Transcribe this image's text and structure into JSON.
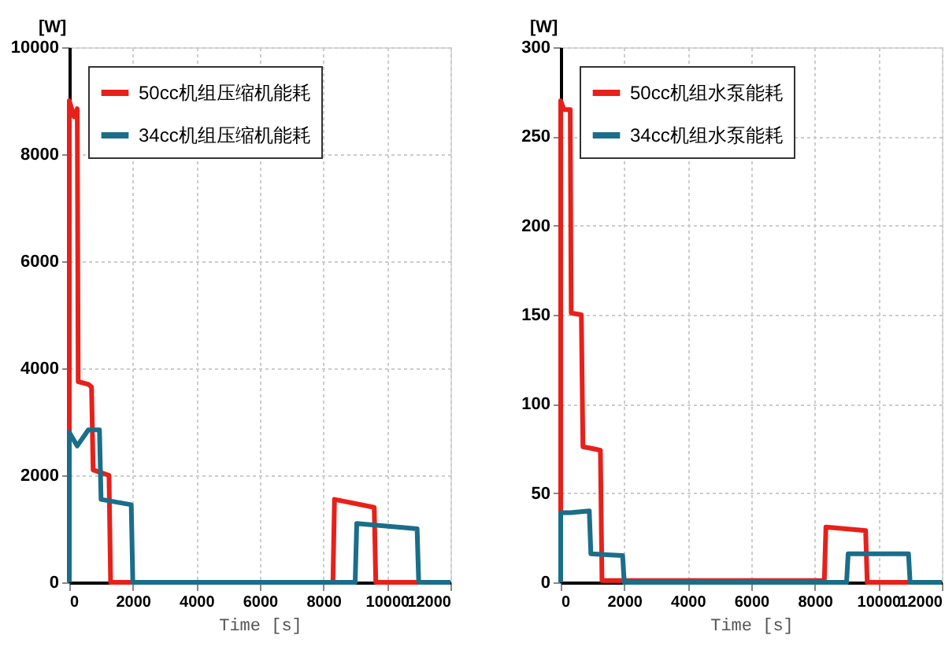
{
  "chart_data": [
    {
      "type": "line",
      "xlabel": "Time [s]",
      "ylabel": "[W]",
      "xlim": [
        0,
        12000
      ],
      "xticks": [
        0,
        2000,
        4000,
        6000,
        8000,
        10000,
        12000
      ],
      "ylim": [
        0,
        10000
      ],
      "yticks": [
        0,
        2000,
        4000,
        6000,
        8000,
        10000
      ],
      "grid": true,
      "legend": "top left",
      "marker": "none",
      "line_style": "solid",
      "series": [
        {
          "name": "50cc机组压缩机能耗",
          "color": "#e8201a",
          "x": [
            0,
            0,
            150,
            250,
            280,
            600,
            700,
            750,
            1000,
            1250,
            1300,
            8300,
            8350,
            9600,
            9650,
            12000
          ],
          "values": [
            0,
            9000,
            8700,
            8850,
            3750,
            3700,
            3650,
            2100,
            2050,
            2000,
            0,
            0,
            1550,
            1400,
            0,
            0
          ]
        },
        {
          "name": "34cc机组压缩机能耗",
          "color": "#1a6e8a",
          "x": [
            0,
            0,
            250,
            600,
            950,
            1000,
            1950,
            2000,
            9000,
            9050,
            10950,
            11000,
            12000
          ],
          "values": [
            0,
            2800,
            2550,
            2850,
            2850,
            1550,
            1450,
            0,
            0,
            1100,
            1000,
            0,
            0
          ]
        }
      ]
    },
    {
      "type": "line",
      "xlabel": "Time [s]",
      "ylabel": "[W]",
      "xlim": [
        0,
        12000
      ],
      "xticks": [
        0,
        2000,
        4000,
        6000,
        8000,
        10000,
        12000
      ],
      "ylim": [
        0,
        300
      ],
      "yticks": [
        0,
        50,
        100,
        150,
        200,
        250,
        300
      ],
      "grid": true,
      "legend": "top left",
      "marker": "none",
      "line_style": "solid",
      "series": [
        {
          "name": "50cc机组水泵能耗",
          "color": "#e8201a",
          "x": [
            0,
            0,
            100,
            300,
            330,
            650,
            700,
            1000,
            1250,
            1300,
            8300,
            8350,
            9600,
            9650,
            12000
          ],
          "values": [
            0,
            270,
            265,
            265,
            151,
            150,
            76,
            75,
            74,
            1,
            1,
            31,
            29,
            0,
            0
          ]
        },
        {
          "name": "34cc机组水泵能耗",
          "color": "#1a6e8a",
          "x": [
            0,
            0,
            300,
            900,
            950,
            1950,
            2000,
            9000,
            9050,
            10950,
            11000,
            12000
          ],
          "values": [
            0,
            39,
            39,
            40,
            16,
            15,
            0,
            0,
            16,
            16,
            0,
            0
          ]
        }
      ]
    }
  ]
}
